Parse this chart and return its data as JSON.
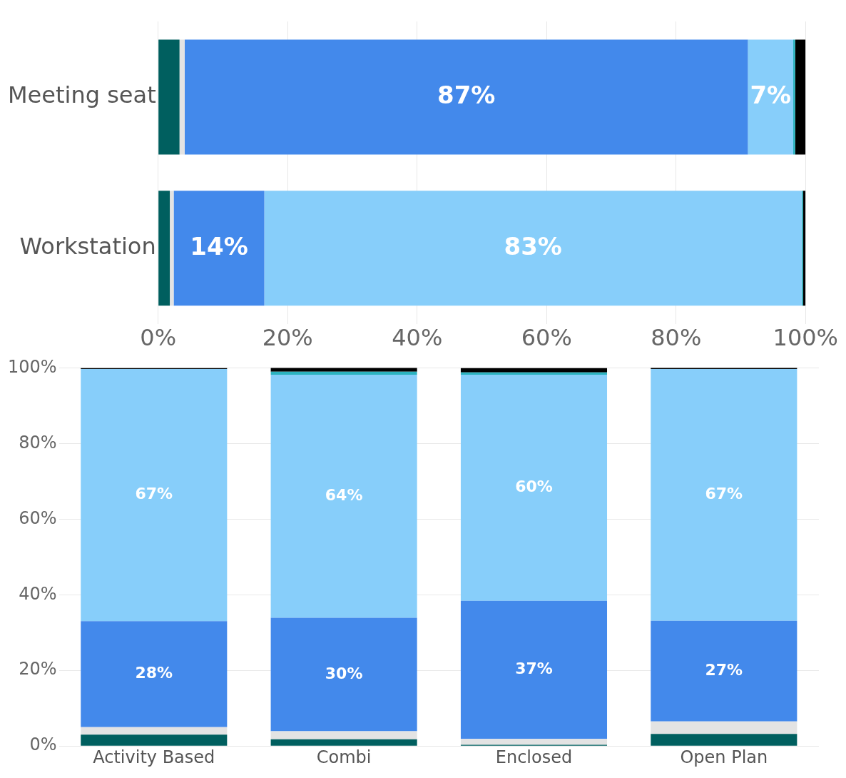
{
  "chart_data": [
    {
      "type": "bar",
      "orientation": "horizontal",
      "stacked": true,
      "categories": [
        "Meeting seat",
        "Workstation"
      ],
      "series": [
        {
          "color": "#005f5f",
          "values": [
            3.3,
            1.8
          ]
        },
        {
          "color": "#e3e3e3",
          "values": [
            0.8,
            0.6
          ]
        },
        {
          "color": "#4389eb",
          "values": [
            87,
            14
          ],
          "value_labels": [
            "87%",
            "14%"
          ]
        },
        {
          "color": "#87cefa",
          "values": [
            7,
            83
          ],
          "value_labels": [
            "7%",
            "83%"
          ]
        },
        {
          "color": "#2bb3c0",
          "values": [
            0.3,
            0.2
          ]
        },
        {
          "color": "#000000",
          "values": [
            1.6,
            0.4
          ]
        }
      ],
      "xlim": [
        0,
        100
      ],
      "xticks": [
        {
          "value": 0,
          "label": "0%"
        },
        {
          "value": 20,
          "label": "20%"
        },
        {
          "value": 40,
          "label": "40%"
        },
        {
          "value": 60,
          "label": "60%"
        },
        {
          "value": 80,
          "label": "80%"
        },
        {
          "value": 100,
          "label": "100%"
        }
      ],
      "grid": "x",
      "legend": false
    },
    {
      "type": "bar",
      "stacked": true,
      "categories": [
        "Activity Based",
        "Combi",
        "Enclosed",
        "Open Plan"
      ],
      "series": [
        {
          "color": "#005f5f",
          "values": [
            3,
            1.8,
            0.3,
            3.2
          ]
        },
        {
          "color": "#e3e3e3",
          "values": [
            2,
            2.1,
            1.6,
            3.3
          ]
        },
        {
          "color": "#4389eb",
          "values": [
            28,
            30,
            36.5,
            26.6
          ],
          "value_labels": [
            "28%",
            "30%",
            "37%",
            "27%"
          ]
        },
        {
          "color": "#87cefa",
          "values": [
            66.7,
            64.3,
            59.8,
            66.6
          ],
          "value_labels": [
            "67%",
            "64%",
            "60%",
            "67%"
          ]
        },
        {
          "color": "#2bb3c0",
          "values": [
            0,
            0.8,
            0.6,
            0
          ]
        },
        {
          "color": "#000000",
          "values": [
            0.3,
            1.1,
            1.2,
            0.4
          ]
        }
      ],
      "ylim": [
        0,
        100
      ],
      "yticks": [
        {
          "value": 0,
          "label": "0%"
        },
        {
          "value": 20,
          "label": "20%"
        },
        {
          "value": 40,
          "label": "40%"
        },
        {
          "value": 60,
          "label": "60%"
        },
        {
          "value": 80,
          "label": "80%"
        },
        {
          "value": 100,
          "label": "100%"
        }
      ],
      "grid": "y",
      "legend": false
    }
  ]
}
